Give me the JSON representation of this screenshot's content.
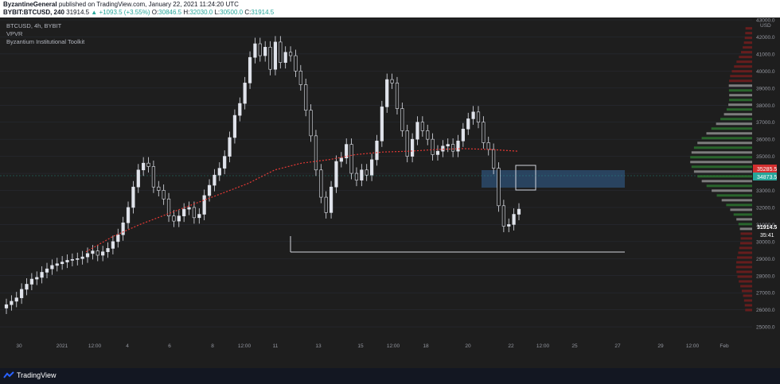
{
  "header": {
    "author": "ByzantineGeneral",
    "published": "published on TradingView.com, January 22, 2021 11:24:20 UTC",
    "symbol_line": "BYBIT:BTCUSD, 240",
    "last": "31914.5",
    "change": "▲ +1093.5 (+3.55%)",
    "o_label": "O:",
    "o_value": "30846.5",
    "h_label": "H:",
    "h_value": "32030.0",
    "l_label": "L:",
    "l_value": "30500.0",
    "c_label": "C:",
    "c_value": "31914.5"
  },
  "legend": {
    "symbol": "BTCUSD, 4h, BYBIT",
    "indicator1": "VPVR",
    "indicator2": "Byzantium Institutional Toolkit"
  },
  "price_axis": {
    "currency": "USD",
    "labels": [
      "43000.0",
      "42000.0",
      "41000.0",
      "40000.0",
      "39000.0",
      "38000.0",
      "37000.0",
      "36000.0",
      "35000.0",
      "34000.0",
      "33000.0",
      "32000.0",
      "31000.0",
      "30000.0",
      "29000.0",
      "28000.0",
      "27000.0",
      "26000.0",
      "25000.0"
    ],
    "badge_red": "35285.5",
    "badge_green": "34873.5",
    "badge_last": "31914.5",
    "countdown": "35:41"
  },
  "time_axis": {
    "labels": [
      "30",
      "2021",
      "12:00",
      "4",
      "6",
      "8",
      "12:00",
      "11",
      "13",
      "15",
      "12:00",
      "18",
      "20",
      "22",
      "12:00",
      "25",
      "27",
      "29",
      "12:00",
      "Feb"
    ]
  },
  "footer": {
    "brand": "TradingView"
  },
  "colors": {
    "background": "#1e1e1e",
    "candle": "#e0e3eb",
    "ma": "#e53935",
    "zone": "#2c4a6b",
    "vpvr_green": "#2e7d32",
    "vpvr_red": "#7f1d1d",
    "poc": "#26a69a"
  },
  "chart_data": {
    "type": "candlestick",
    "ylim": [
      25000,
      43000
    ],
    "candle_closes": [
      26300,
      26500,
      26700,
      27200,
      27500,
      27800,
      27900,
      28200,
      28400,
      28600,
      28700,
      28800,
      28900,
      28950,
      29000,
      29100,
      29300,
      29450,
      29200,
      29400,
      29600,
      30000,
      30400,
      31100,
      32000,
      33200,
      34200,
      34600,
      34400,
      33200,
      33000,
      32500,
      31500,
      31200,
      31500,
      31900,
      32000,
      31400,
      31600,
      32700,
      33300,
      33900,
      34300,
      35000,
      36100,
      37400,
      38100,
      39300,
      40800,
      41600,
      40900,
      41400,
      40100,
      41700,
      40500,
      41100,
      40900,
      40000,
      39200,
      37700,
      36200,
      34200,
      32600,
      31700,
      33200,
      34700,
      34900,
      35700,
      34000,
      33600,
      34200,
      33900,
      34800,
      35900,
      37900,
      39500,
      39300,
      37800,
      36500,
      35000,
      36000,
      37000,
      36500,
      36000,
      35100,
      35300,
      35600,
      35700,
      35300,
      35900,
      36600,
      37200,
      37600,
      37000,
      35800,
      35400,
      34300,
      32100,
      30900,
      31000,
      31600,
      31900
    ],
    "ma_level": [
      29400,
      30300,
      31000,
      31600,
      32200,
      32800,
      33400,
      34200,
      34600,
      34800,
      35100,
      35250,
      35300,
      35400,
      35450,
      35400,
      35300
    ]
  }
}
